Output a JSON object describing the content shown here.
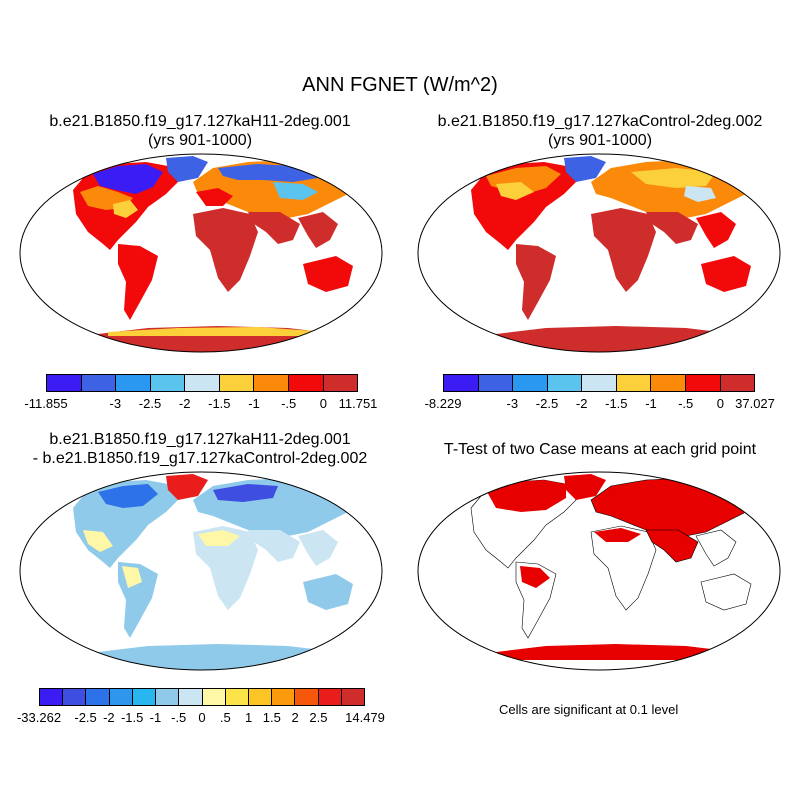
{
  "main_title": "ANN FGNET (W/m^2)",
  "panels": [
    {
      "title_line1": "b.e21.B1850.f19_g17.127kaH11-2deg.001",
      "title_line2": "(yrs 901-1000)",
      "colorbar": {
        "colors": [
          "#3b1cf5",
          "#3d62e4",
          "#2a97f0",
          "#5bc4ee",
          "#cbe6f2",
          "#fcd03a",
          "#fb8a0b",
          "#f20a0a",
          "#cf2c2c"
        ],
        "labels": [
          "-11.855",
          "-3",
          "-2.5",
          "-2",
          "-1.5",
          "-1",
          "-.5",
          "0",
          "11.751"
        ]
      }
    },
    {
      "title_line1": "b.e21.B1850.f19_g17.127kaControl-2deg.002",
      "title_line2": "(yrs 901-1000)",
      "colorbar": {
        "colors": [
          "#3b1cf5",
          "#3d62e4",
          "#2a97f0",
          "#5bc4ee",
          "#cbe6f2",
          "#fcd03a",
          "#fb8a0b",
          "#f20a0a",
          "#cf2c2c"
        ],
        "labels": [
          "-8.229",
          "-3",
          "-2.5",
          "-2",
          "-1.5",
          "-1",
          "-.5",
          "0",
          "37.027"
        ]
      }
    },
    {
      "title_line1": "b.e21.B1850.f19_g17.127kaH11-2deg.001",
      "title_line2": "- b.e21.B1850.f19_g17.127kaControl-2deg.002",
      "colorbar": {
        "colors": [
          "#3b1cf5",
          "#3d4ee0",
          "#2d72e8",
          "#2e96ec",
          "#27b6f0",
          "#8fcaea",
          "#cbe6f2",
          "#fff7a8",
          "#fde34a",
          "#fcc425",
          "#fb9b0c",
          "#f5570d",
          "#ea1d1d",
          "#cf2c2c"
        ],
        "labels": [
          "-33.262",
          "-2.5",
          "-2",
          "-1.5",
          "-1",
          "-.5",
          "0",
          ".5",
          "1",
          "1.5",
          "2",
          "2.5",
          "14.479"
        ]
      }
    },
    {
      "title_line1": "T-Test of two Case means at each grid point",
      "note": "Cells are significant at 0.1 level"
    }
  ]
}
